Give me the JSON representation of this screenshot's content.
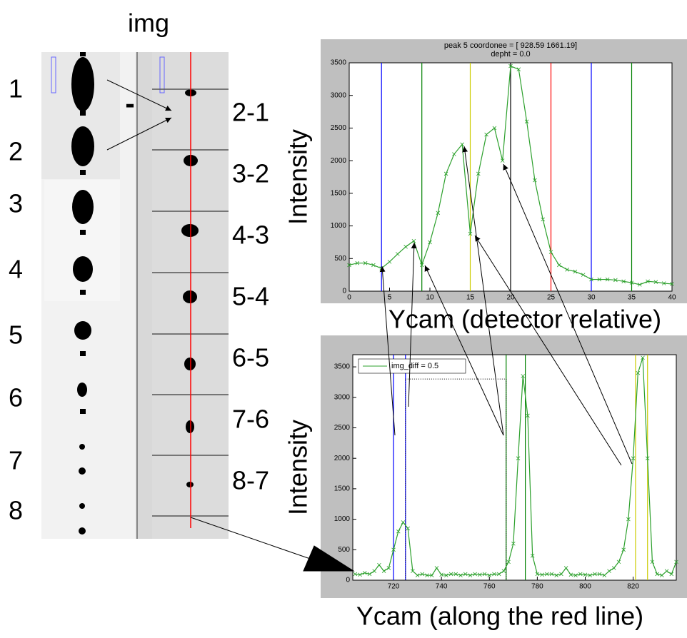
{
  "image_panel": {
    "title": "img",
    "minus": "-",
    "row_labels": [
      "1",
      "2",
      "3",
      "4",
      "5",
      "6",
      "7",
      "8"
    ],
    "diff_labels": [
      "2-1",
      "3-2",
      "4-3",
      "5-4",
      "6-5",
      "7-6",
      "8-7"
    ]
  },
  "chart_data": [
    {
      "type": "line",
      "title": "peak 5 coordonee = [  928.59  1661.19]",
      "subtitle": "depht = 0.0",
      "xlabel": "Ycam (detector relative)",
      "ylabel": "Intensity",
      "xlim": [
        0,
        40
      ],
      "xticks": [
        0,
        5,
        10,
        15,
        20,
        25,
        30,
        35,
        40
      ],
      "ylim": [
        0,
        3500
      ],
      "yticks": [
        0,
        500,
        1000,
        1500,
        2000,
        2500,
        3000,
        3500
      ],
      "x": [
        0,
        1,
        2,
        3,
        4,
        5,
        6,
        7,
        8,
        9,
        10,
        11,
        12,
        13,
        14,
        15,
        16,
        17,
        18,
        19,
        20,
        21,
        22,
        23,
        24,
        25,
        26,
        27,
        28,
        29,
        30,
        31,
        32,
        33,
        34,
        35,
        36,
        37,
        38,
        39,
        40
      ],
      "series": [
        {
          "color": "#2ca02c",
          "values": [
            400,
            430,
            430,
            400,
            350,
            450,
            570,
            680,
            770,
            400,
            750,
            1200,
            1800,
            2100,
            2250,
            880,
            1800,
            2400,
            2500,
            2000,
            3450,
            3400,
            2600,
            1700,
            1100,
            600,
            400,
            330,
            300,
            250,
            180,
            180,
            180,
            170,
            150,
            130,
            100,
            150,
            140,
            120,
            110
          ]
        }
      ],
      "vlines": [
        {
          "x": 4,
          "color": "#0000ff"
        },
        {
          "x": 9,
          "color": "#008000"
        },
        {
          "x": 15,
          "color": "#cccc00"
        },
        {
          "x": 20,
          "color": "#000000"
        },
        {
          "x": 25,
          "color": "#ff0000"
        },
        {
          "x": 30,
          "color": "#0000ff"
        },
        {
          "x": 35,
          "color": "#008000"
        }
      ]
    },
    {
      "type": "line",
      "xlabel": "Ycam (along the red line)",
      "ylabel": "Intensity",
      "legend": "upper left",
      "xlim": [
        703,
        838
      ],
      "xticks": [
        720,
        740,
        760,
        780,
        800,
        820
      ],
      "ylim": [
        0,
        3700
      ],
      "yticks": [
        0,
        500,
        1000,
        1500,
        2000,
        2500,
        3000,
        3500
      ],
      "x": [
        704,
        706,
        708,
        710,
        712,
        714,
        716,
        718,
        720,
        722,
        724,
        726,
        728,
        730,
        732,
        734,
        736,
        738,
        740,
        742,
        744,
        746,
        748,
        750,
        752,
        754,
        756,
        758,
        760,
        762,
        764,
        766,
        768,
        770,
        772,
        774,
        776,
        778,
        780,
        782,
        784,
        786,
        788,
        790,
        792,
        794,
        796,
        798,
        800,
        802,
        804,
        806,
        808,
        810,
        812,
        814,
        816,
        818,
        820,
        822,
        824,
        826,
        828,
        830,
        832,
        834,
        836,
        838
      ],
      "series": [
        {
          "name": "img_diff = 0.5",
          "color": "#2ca02c",
          "values": [
            100,
            90,
            120,
            100,
            150,
            250,
            150,
            200,
            500,
            800,
            950,
            850,
            150,
            80,
            100,
            80,
            80,
            200,
            90,
            80,
            100,
            100,
            80,
            100,
            80,
            100,
            90,
            100,
            80,
            100,
            100,
            150,
            300,
            600,
            2000,
            3350,
            2700,
            400,
            100,
            90,
            100,
            100,
            80,
            100,
            200,
            90,
            80,
            100,
            90,
            80,
            100,
            100,
            80,
            150,
            200,
            300,
            500,
            1000,
            2000,
            3400,
            3650,
            2000,
            300,
            100,
            80,
            150,
            100,
            300
          ]
        }
      ],
      "vlines": [
        {
          "x": 720,
          "color": "#0000ff"
        },
        {
          "x": 725,
          "color": "#0000ff"
        },
        {
          "x": 767,
          "color": "#008000"
        },
        {
          "x": 775,
          "color": "#008000"
        },
        {
          "x": 821,
          "color": "#cccc00"
        },
        {
          "x": 826,
          "color": "#cccc00"
        }
      ],
      "box": {
        "x": [
          725,
          767
        ],
        "y": [
          0,
          3300
        ]
      }
    }
  ]
}
